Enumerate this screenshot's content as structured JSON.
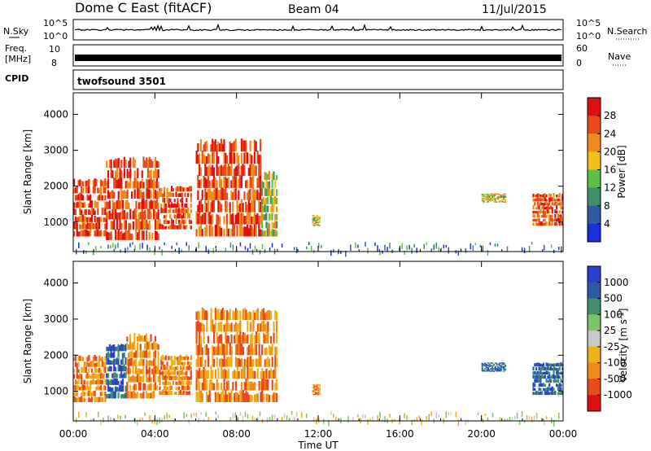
{
  "header": {
    "title": "Dome C East (fitACF)",
    "beam": "Beam 04",
    "date": "11/Jul/2015"
  },
  "top_panels": {
    "nsky_label": "N.Sky",
    "nsky_left_hi": "10^5",
    "nsky_left_lo": "10^0",
    "nsky_right_hi": "10^5",
    "nsky_right_lo": "10^0",
    "nsearch_label": "N.Search",
    "freq_label": "Freq.",
    "freq_unit": "[MHz]",
    "freq_left_hi": "10",
    "freq_left_lo": "8",
    "nave_right_hi": "60",
    "nave_right_lo": "0",
    "nave_label": "Nave",
    "cpid_label": "CPID",
    "cpid_value": "twofsound 3501"
  },
  "chart_data": [
    {
      "type": "heatmap",
      "name": "power",
      "title": "",
      "xlabel": "Time UT",
      "ylabel": "Slant Range [km]",
      "x_ticks": [
        "00:00",
        "04:00",
        "08:00",
        "12:00",
        "16:00",
        "20:00",
        "00:00"
      ],
      "xlim_hours": [
        0,
        24
      ],
      "y_ticks": [
        1000,
        2000,
        3000,
        4000
      ],
      "ylim": [
        180,
        4600
      ],
      "colorbar": {
        "label": "Power [dB]",
        "ticks": [
          "4",
          "8",
          "12",
          "16",
          "20",
          "24",
          "28"
        ],
        "colors": [
          "#1a2de0",
          "#2f5aa6",
          "#3f8f6a",
          "#5cc04a",
          "#f2c21a",
          "#f08a1a",
          "#e84a1a",
          "#e01010"
        ]
      },
      "echo_regions": [
        {
          "t0": 0.0,
          "t1": 1.6,
          "r0": 600,
          "r1": 2200,
          "value": "high"
        },
        {
          "t0": 1.6,
          "t1": 4.2,
          "r0": 500,
          "r1": 2800,
          "value": "high"
        },
        {
          "t0": 4.2,
          "t1": 5.8,
          "r0": 800,
          "r1": 2000,
          "value": "high"
        },
        {
          "t0": 6.0,
          "t1": 9.2,
          "r0": 600,
          "r1": 3300,
          "value": "high"
        },
        {
          "t0": 9.2,
          "t1": 10.0,
          "r0": 600,
          "r1": 2400,
          "value": "medium"
        },
        {
          "t0": 11.7,
          "t1": 12.1,
          "r0": 900,
          "r1": 1200,
          "value": "medium"
        },
        {
          "t0": 20.0,
          "t1": 21.2,
          "r0": 1550,
          "r1": 1800,
          "value": "medium"
        },
        {
          "t0": 22.5,
          "t1": 24.0,
          "r0": 900,
          "r1": 1800,
          "value": "high"
        }
      ]
    },
    {
      "type": "heatmap",
      "name": "velocity",
      "title": "",
      "xlabel": "Time UT",
      "ylabel": "Slant Range [km]",
      "x_ticks": [
        "00:00",
        "04:00",
        "08:00",
        "12:00",
        "16:00",
        "20:00",
        "00:00"
      ],
      "xlim_hours": [
        0,
        24
      ],
      "y_ticks": [
        1000,
        2000,
        3000,
        4000
      ],
      "ylim": [
        180,
        4600
      ],
      "colorbar": {
        "label": "Velocity [m s^-1]",
        "ticks": [
          "1000",
          "500",
          "100",
          "25",
          "-25",
          "-100",
          "-500",
          "-1000"
        ],
        "colors": [
          "#2b3fd0",
          "#2f5aa6",
          "#3f8f6a",
          "#7ec26a",
          "#c8c8c8",
          "#f0b01a",
          "#f08a1a",
          "#e84a1a",
          "#e01010"
        ]
      },
      "echo_regions": [
        {
          "t0": 0.0,
          "t1": 1.6,
          "r0": 700,
          "r1": 2000,
          "value": "negative"
        },
        {
          "t0": 1.6,
          "t1": 2.6,
          "r0": 800,
          "r1": 2300,
          "value": "positive"
        },
        {
          "t0": 2.6,
          "t1": 4.2,
          "r0": 800,
          "r1": 2600,
          "value": "negative"
        },
        {
          "t0": 4.2,
          "t1": 5.8,
          "r0": 900,
          "r1": 2000,
          "value": "negative"
        },
        {
          "t0": 6.0,
          "t1": 10.0,
          "r0": 700,
          "r1": 3300,
          "value": "negative"
        },
        {
          "t0": 11.7,
          "t1": 12.1,
          "r0": 900,
          "r1": 1200,
          "value": "negative"
        },
        {
          "t0": 20.0,
          "t1": 21.2,
          "r0": 1550,
          "r1": 1800,
          "value": "positive"
        },
        {
          "t0": 22.5,
          "t1": 24.0,
          "r0": 900,
          "r1": 1800,
          "value": "positive"
        }
      ]
    }
  ]
}
